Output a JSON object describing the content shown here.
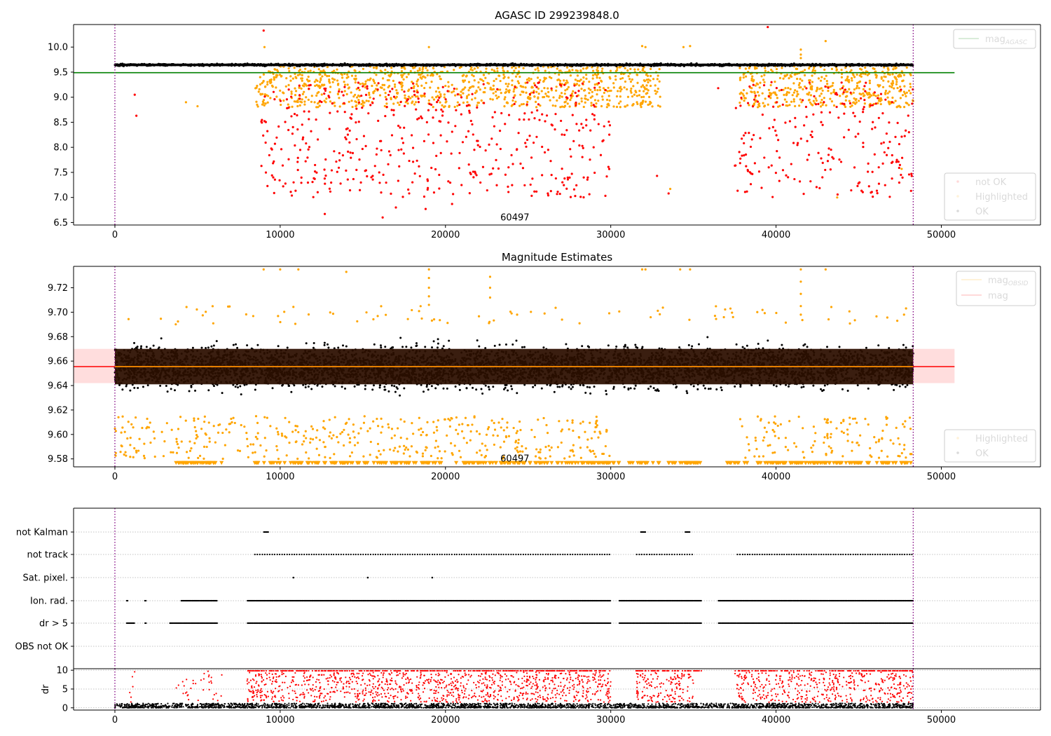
{
  "figure": {
    "colors": {
      "not_ok": "#ff0000",
      "highlighted": "#ffa500",
      "ok": "#000000",
      "agasc_line": "#008000",
      "mag_line": "#ff0000",
      "mag_band": "#ffb3b3",
      "mag_obsid_line": "#ffa500",
      "obs_line": "#800080",
      "brown": "#2b0f00"
    }
  },
  "chart_data": [
    {
      "id": "top",
      "type": "scatter",
      "title": "AGASC ID 299239848.0",
      "xlabel": "",
      "ylabel": "",
      "xlim": [
        -2500,
        56000
      ],
      "ylim": [
        6.45,
        10.45
      ],
      "xticks": [
        "0",
        "10000",
        "20000",
        "30000",
        "40000",
        "50000"
      ],
      "xtick_values": [
        0,
        10000,
        20000,
        30000,
        40000,
        50000
      ],
      "yticks": [
        "6.5",
        "7.0",
        "7.5",
        "8.0",
        "8.5",
        "9.0",
        "9.5",
        "10.0"
      ],
      "ytick_values": [
        6.5,
        7.0,
        7.5,
        8.0,
        8.5,
        9.0,
        9.5,
        10.0
      ],
      "obs_boundaries": [
        0,
        48300
      ],
      "obs_label": {
        "text": "60497",
        "x": 24200,
        "y": 6.6
      },
      "hlines": [
        {
          "name": "mag_agasc",
          "y": 9.49,
          "x_range": [
            -2500,
            50800
          ],
          "color": "#008000"
        }
      ],
      "legend_lines": [
        {
          "label": "mag",
          "sub": "AGASC",
          "color": "#008000",
          "position": "upper-right"
        }
      ],
      "legend_points": [
        {
          "label": "not OK",
          "color": "#ff0000"
        },
        {
          "label": "Highlighted",
          "color": "#ffa500"
        },
        {
          "label": "OK",
          "color": "#000000"
        }
      ],
      "series": [
        {
          "name": "OK",
          "color": "#000000",
          "x_range": [
            0,
            48300
          ],
          "y_center": 9.645,
          "y_spread": 0.02,
          "count": 1400
        },
        {
          "name": "Highlighted",
          "color": "#ffa500",
          "segments": [
            [
              8500,
              33000
            ],
            [
              37800,
              48300
            ]
          ],
          "y_range": [
            8.8,
            9.62
          ],
          "count": 1400
        },
        {
          "name": "not OK",
          "color": "#ff0000",
          "segments": [
            [
              8800,
              30000
            ],
            [
              37500,
              48300
            ]
          ],
          "y_range": [
            7.0,
            9.3
          ],
          "count": 700
        },
        {
          "name": "not OK",
          "color": "#ff0000",
          "points": [
            [
              9000,
              10.33
            ],
            [
              39500,
              10.4
            ],
            [
              1200,
              9.05
            ],
            [
              1300,
              8.63
            ],
            [
              12700,
              6.67
            ],
            [
              16200,
              6.6
            ],
            [
              17000,
              6.8
            ],
            [
              18800,
              6.77
            ],
            [
              20400,
              6.87
            ],
            [
              32800,
              7.43
            ],
            [
              33500,
              7.08
            ],
            [
              36500,
              9.18
            ]
          ]
        },
        {
          "name": "Highlighted",
          "color": "#ffa500",
          "points": [
            [
              31900,
              10.02
            ],
            [
              32100,
              10.0
            ],
            [
              34400,
              10.0
            ],
            [
              34800,
              10.02
            ],
            [
              43000,
              10.12
            ],
            [
              9050,
              10.0
            ],
            [
              41500,
              9.95
            ],
            [
              41500,
              9.85
            ],
            [
              41500,
              9.78
            ],
            [
              19000,
              10.0
            ],
            [
              43700,
              7.0
            ],
            [
              47600,
              7.57
            ],
            [
              33600,
              7.17
            ],
            [
              4300,
              8.9
            ],
            [
              5000,
              8.82
            ]
          ]
        }
      ]
    },
    {
      "id": "middle",
      "type": "scatter",
      "title": "Magnitude Estimates",
      "xlabel": "",
      "ylabel": "",
      "xlim": [
        -2500,
        56000
      ],
      "ylim": [
        9.5735,
        9.7375
      ],
      "xticks": [
        "0",
        "10000",
        "20000",
        "30000",
        "40000",
        "50000"
      ],
      "xtick_values": [
        0,
        10000,
        20000,
        30000,
        40000,
        50000
      ],
      "yticks": [
        "9.58",
        "9.60",
        "9.62",
        "9.64",
        "9.66",
        "9.68",
        "9.70",
        "9.72"
      ],
      "ytick_values": [
        9.58,
        9.6,
        9.62,
        9.64,
        9.66,
        9.68,
        9.7,
        9.72
      ],
      "obs_boundaries": [
        0,
        48300
      ],
      "obs_label": {
        "text": "60497",
        "x": 24200,
        "y": 9.58
      },
      "mag": 9.6555,
      "mag_band": [
        9.642,
        9.67
      ],
      "mag_obsid": 9.6555,
      "dense_band": [
        9.641,
        9.67
      ],
      "legend_lines": [
        {
          "label": "mag",
          "sub": "OBSID",
          "color": "#ffa500"
        },
        {
          "label": "mag",
          "sub": "",
          "color": "#ff0000"
        }
      ],
      "legend_points": [
        {
          "label": "Highlighted",
          "color": "#ffa500"
        },
        {
          "label": "OK",
          "color": "#000000"
        }
      ],
      "series": [
        {
          "name": "OK",
          "color": "#000000",
          "x_range": [
            0,
            48300
          ],
          "y_center": 9.655,
          "y_spread": 0.016,
          "count": 5000
        },
        {
          "name": "Highlighted",
          "color": "#ffa500",
          "segments": [
            [
              0,
              30000
            ],
            [
              37800,
              48300
            ]
          ],
          "y_range": [
            9.58,
            9.615
          ],
          "count": 550
        },
        {
          "name": "Highlighted",
          "color": "#ffa500",
          "x_range": [
            0,
            48300
          ],
          "y_range": [
            9.69,
            9.705
          ],
          "count": 80
        },
        {
          "name": "Highlighted",
          "color": "#ffa500",
          "points": [
            [
              19000,
              9.735
            ],
            [
              19000,
              9.728
            ],
            [
              19000,
              9.72
            ],
            [
              19000,
              9.713
            ],
            [
              19000,
              9.706
            ],
            [
              22700,
              9.729
            ],
            [
              22700,
              9.72
            ],
            [
              22700,
              9.712
            ],
            [
              41500,
              9.735
            ],
            [
              41500,
              9.725
            ],
            [
              41500,
              9.715
            ],
            [
              41500,
              9.705
            ],
            [
              41500,
              9.698
            ],
            [
              9000,
              9.735
            ],
            [
              10000,
              9.735
            ],
            [
              11100,
              9.735
            ],
            [
              14000,
              9.733
            ],
            [
              31900,
              9.735
            ],
            [
              32100,
              9.735
            ],
            [
              34200,
              9.735
            ],
            [
              34800,
              9.735
            ],
            [
              43000,
              9.735
            ]
          ]
        },
        {
          "name": "Highlighted",
          "color": "#ffa500",
          "segments": [
            [
              3600,
              6500
            ],
            [
              8400,
              33000
            ],
            [
              33500,
              35500
            ],
            [
              37000,
              48300
            ]
          ],
          "y_value": 9.5765,
          "marker": "triangle",
          "count": 420
        }
      ]
    },
    {
      "id": "flags",
      "type": "scatter",
      "xlim": [
        -2500,
        56000
      ],
      "categories": [
        "not Kalman",
        "not track",
        "Sat. pixel.",
        "Ion. rad.",
        "dr > 5",
        "OBS not OK"
      ],
      "obs_boundaries": [
        0,
        48300
      ],
      "rows": [
        {
          "label": "not Kalman",
          "segments": [
            [
              9000,
              9300
            ],
            [
              31800,
              32100
            ],
            [
              34500,
              34800
            ]
          ],
          "count": 30
        },
        {
          "label": "not track",
          "segments": [
            [
              8400,
              30000
            ],
            [
              31500,
              35000
            ],
            [
              37600,
              48300
            ]
          ],
          "count": 240
        },
        {
          "label": "Sat. pixel.",
          "points": [
            10800,
            15300,
            19200
          ]
        },
        {
          "label": "Ion. rad.",
          "segments": [
            [
              700,
              800
            ],
            [
              1800,
              1900
            ],
            [
              4000,
              6200
            ],
            [
              8000,
              30000
            ],
            [
              30500,
              35500
            ],
            [
              36500,
              48300
            ]
          ],
          "count": 900
        },
        {
          "label": "dr > 5",
          "segments": [
            [
              700,
              1200
            ],
            [
              1800,
              1900
            ],
            [
              3300,
              6200
            ],
            [
              8000,
              30000
            ],
            [
              30500,
              35500
            ],
            [
              36500,
              48300
            ]
          ],
          "count": 900
        },
        {
          "label": "OBS not OK",
          "segments": [],
          "count": 0
        }
      ]
    },
    {
      "id": "dr",
      "type": "scatter",
      "ylabel": "dr",
      "xlim": [
        -2500,
        56000
      ],
      "ylim": [
        -0.6,
        10.4
      ],
      "xticks": [
        "0",
        "10000",
        "20000",
        "30000",
        "40000",
        "50000"
      ],
      "xtick_values": [
        0,
        10000,
        20000,
        30000,
        40000,
        50000
      ],
      "yticks": [
        "0",
        "5",
        "10"
      ],
      "ytick_values": [
        0,
        5,
        10
      ],
      "obs_boundaries": [
        0,
        48300
      ],
      "series": [
        {
          "name": "OK",
          "color": "#000000",
          "x_range": [
            0,
            48300
          ],
          "y_range": [
            0,
            1.2
          ],
          "count": 2600
        },
        {
          "name": "not OK",
          "color": "#ff0000",
          "segments": [
            [
              8000,
              30000
            ],
            [
              31500,
              35000
            ],
            [
              37500,
              48300
            ]
          ],
          "y_range": [
            1.5,
            9.5
          ],
          "count": 1600
        },
        {
          "name": "not OK",
          "color": "#ff0000",
          "segments": [
            [
              8000,
              30000
            ],
            [
              31500,
              35500
            ],
            [
              37500,
              48300
            ]
          ],
          "y_value": 9.85,
          "count": 600
        },
        {
          "name": "not OK",
          "color": "#ff0000",
          "segments": [
            [
              700,
              1200
            ],
            [
              3500,
              6500
            ]
          ],
          "y_range": [
            1.5,
            9.8
          ],
          "count": 40
        }
      ]
    }
  ]
}
